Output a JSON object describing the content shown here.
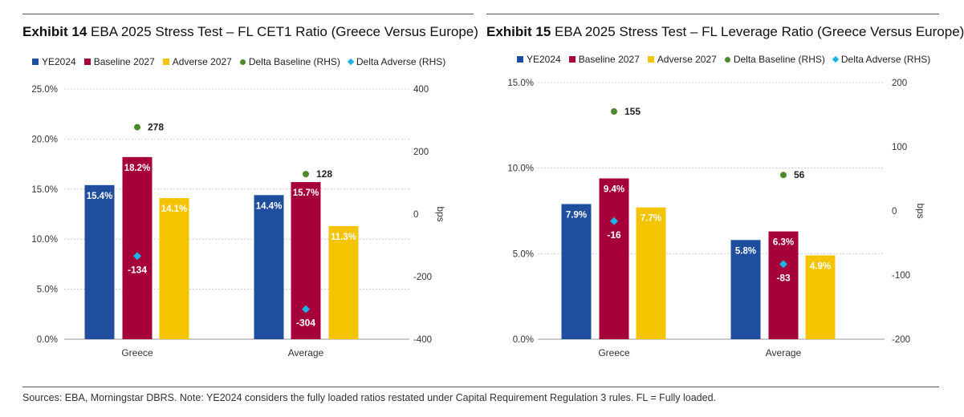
{
  "colors": {
    "ye2024": "#1f4e9e",
    "baseline": "#a5003a",
    "adverse": "#f5c400",
    "delta_baseline": "#4a8a2a",
    "delta_adverse": "#1eb3e6"
  },
  "chart_data": [
    {
      "type": "bar",
      "exhibit": "Exhibit 14",
      "title": "EBA 2025 Stress Test – FL CET1 Ratio (Greece Versus Europe)",
      "categories": [
        "Greece",
        "Average"
      ],
      "series": [
        {
          "key": "ye2024",
          "name": "YE2024",
          "values": [
            15.4,
            14.4
          ],
          "labels": [
            "15.4%",
            "14.4%"
          ]
        },
        {
          "key": "baseline",
          "name": "Baseline 2027",
          "values": [
            18.2,
            15.7
          ],
          "labels": [
            "18.2%",
            "15.7%"
          ]
        },
        {
          "key": "adverse",
          "name": "Adverse 2027",
          "values": [
            14.1,
            11.3
          ],
          "labels": [
            "14.1%",
            "11.3%"
          ]
        }
      ],
      "rhs_series": [
        {
          "key": "delta_baseline",
          "name": "Delta Baseline (RHS)",
          "marker": "circle",
          "values": [
            278,
            128
          ],
          "labels": [
            "278",
            "128"
          ]
        },
        {
          "key": "delta_adverse",
          "name": "Delta Adverse (RHS)",
          "marker": "diamond",
          "values": [
            -134,
            -304
          ],
          "labels": [
            "-134",
            "-304"
          ]
        }
      ],
      "ylim": [
        0,
        25
      ],
      "yticks": [
        0,
        5,
        10,
        15,
        20,
        25
      ],
      "ytick_labels": [
        "0.0%",
        "5.0%",
        "10.0%",
        "15.0%",
        "20.0%",
        "25.0%"
      ],
      "y2lim": [
        -400,
        400
      ],
      "y2ticks": [
        -400,
        -200,
        0,
        200,
        400
      ],
      "y2tick_labels": [
        "-400",
        "-200",
        "0",
        "200",
        "400"
      ],
      "y2label": "bps",
      "grid": true
    },
    {
      "type": "bar",
      "exhibit": "Exhibit 15",
      "title": "EBA 2025 Stress Test – FL Leverage Ratio (Greece Versus Europe)",
      "categories": [
        "Greece",
        "Average"
      ],
      "series": [
        {
          "key": "ye2024",
          "name": "YE2024",
          "values": [
            7.9,
            5.8
          ],
          "labels": [
            "7.9%",
            "5.8%"
          ]
        },
        {
          "key": "baseline",
          "name": "Baseline 2027",
          "values": [
            9.4,
            6.3
          ],
          "labels": [
            "9.4%",
            "6.3%"
          ]
        },
        {
          "key": "adverse",
          "name": "Adverse 2027",
          "values": [
            7.7,
            4.9
          ],
          "labels": [
            "7.7%",
            "4.9%"
          ]
        }
      ],
      "rhs_series": [
        {
          "key": "delta_baseline",
          "name": "Delta Baseline (RHS)",
          "marker": "circle",
          "values": [
            155,
            56
          ],
          "labels": [
            "155",
            "56"
          ]
        },
        {
          "key": "delta_adverse",
          "name": "Delta Adverse (RHS)",
          "marker": "diamond",
          "values": [
            -16,
            -83
          ],
          "labels": [
            "-16",
            "-83"
          ]
        }
      ],
      "ylim": [
        0,
        15
      ],
      "yticks": [
        0,
        5,
        10,
        15
      ],
      "ytick_labels": [
        "0.0%",
        "5.0%",
        "10.0%",
        "15.0%"
      ],
      "y2lim": [
        -200,
        200
      ],
      "y2ticks": [
        -200,
        -100,
        0,
        100,
        200
      ],
      "y2tick_labels": [
        "-200",
        "-100",
        "0",
        "100",
        "200"
      ],
      "y2label": "bps",
      "grid": true
    }
  ],
  "footer": "Sources: EBA, Morningstar DBRS. Note: YE2024 considers the fully loaded ratios restated under Capital Requirement Regulation 3 rules. FL = Fully loaded."
}
